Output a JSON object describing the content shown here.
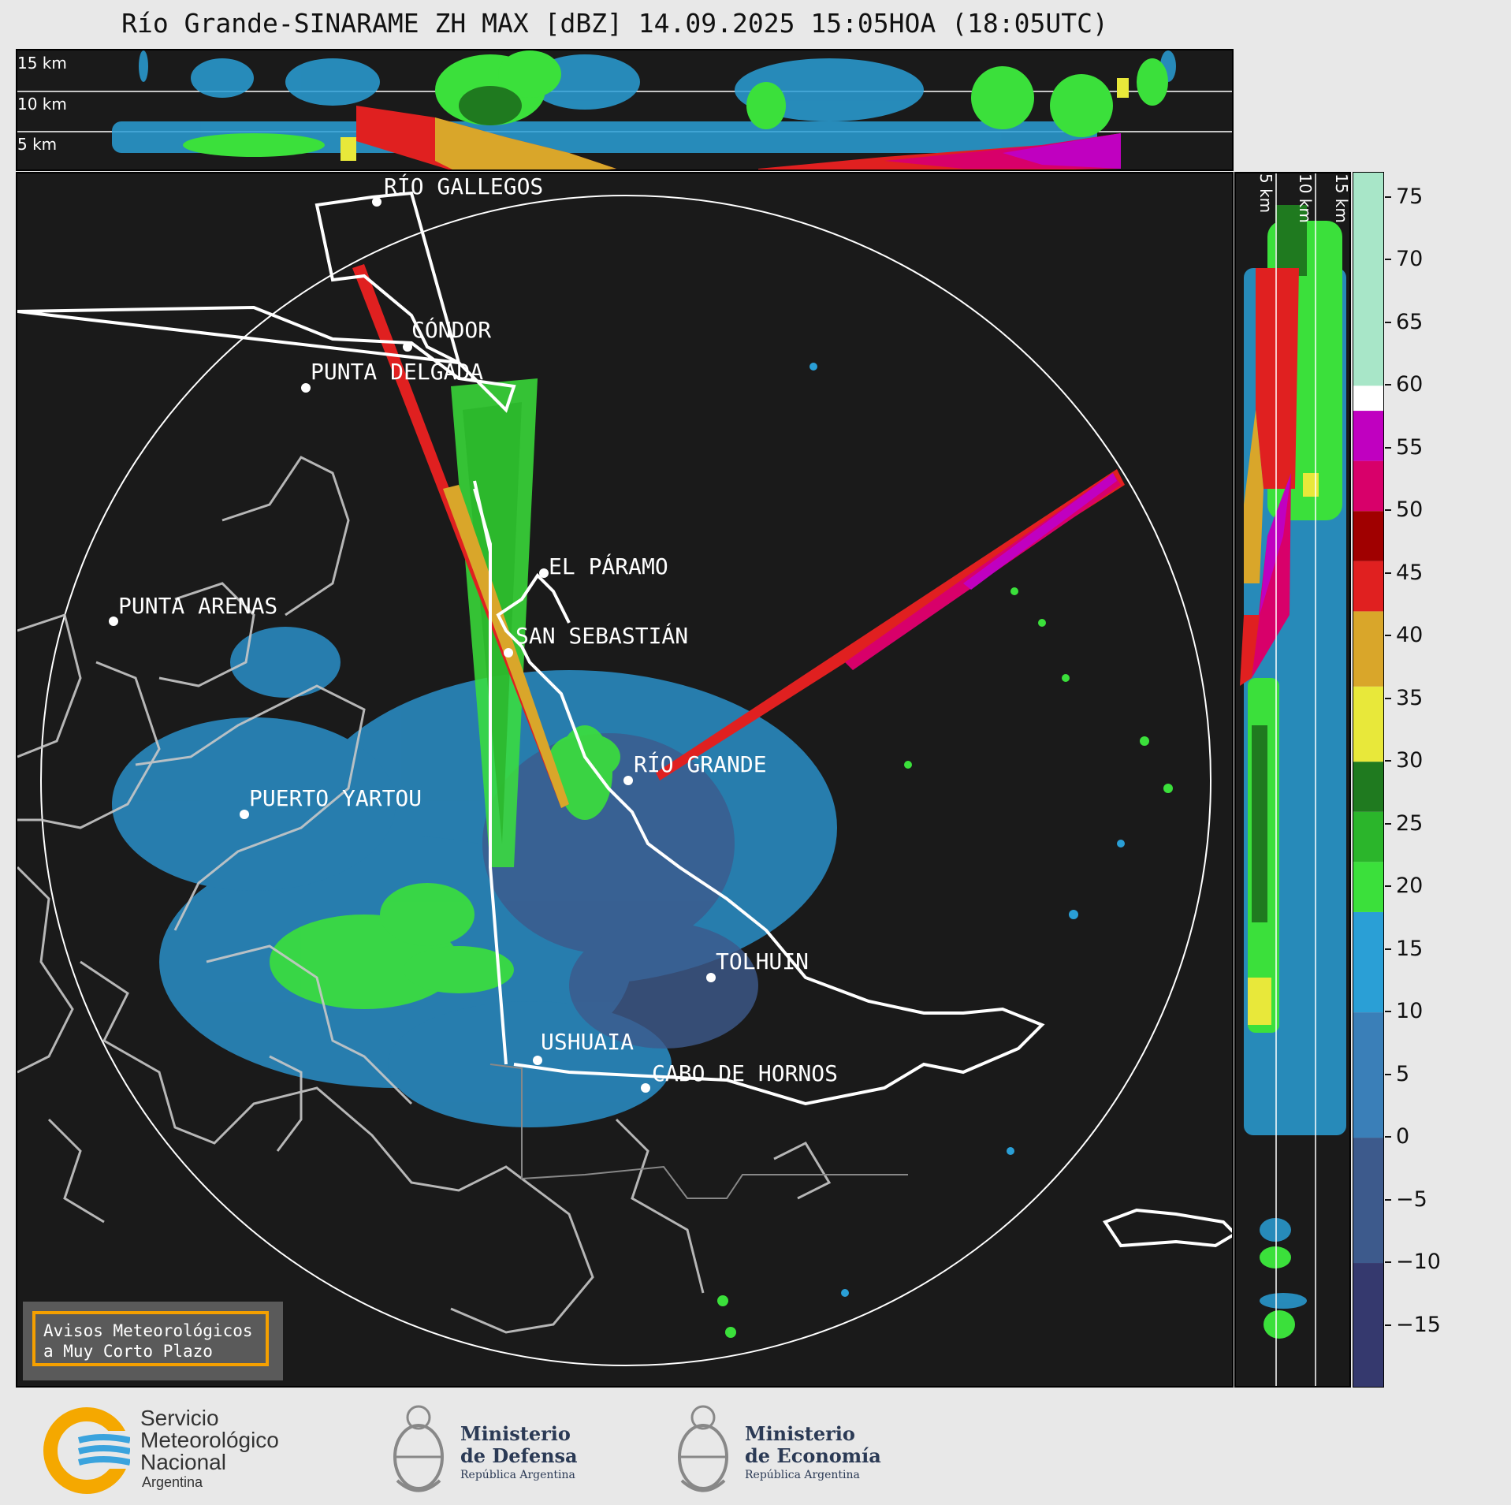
{
  "title": "Río Grande-SINARAME ZH MAX [dBZ] 14.09.2025 15:05HOA (18:05UTC)",
  "top_panel": {
    "altitude_labels": [
      "15 km",
      "10 km",
      "5 km"
    ]
  },
  "side_panel": {
    "altitude_labels": [
      "5 km",
      "10 km",
      "15 km"
    ]
  },
  "colorbar": {
    "unit": "dBZ",
    "range": [
      -20,
      77
    ],
    "ticks": [
      75,
      70,
      65,
      60,
      55,
      50,
      45,
      40,
      35,
      30,
      25,
      20,
      15,
      10,
      5,
      0,
      "−5",
      "−10",
      "−15"
    ],
    "colors": [
      {
        "from": -20,
        "to": -10,
        "color": "#35396e"
      },
      {
        "from": -10,
        "to": 0,
        "color": "#3d5a8c"
      },
      {
        "from": 0,
        "to": 10,
        "color": "#3a7fb8"
      },
      {
        "from": 10,
        "to": 18,
        "color": "#2a9fd6"
      },
      {
        "from": 18,
        "to": 22,
        "color": "#3be03b"
      },
      {
        "from": 22,
        "to": 26,
        "color": "#2bb52b"
      },
      {
        "from": 26,
        "to": 30,
        "color": "#1f7a1f"
      },
      {
        "from": 30,
        "to": 36,
        "color": "#e8e83a"
      },
      {
        "from": 36,
        "to": 42,
        "color": "#d9a62a"
      },
      {
        "from": 42,
        "to": 46,
        "color": "#e02020"
      },
      {
        "from": 46,
        "to": 50,
        "color": "#a00000"
      },
      {
        "from": 50,
        "to": 54,
        "color": "#d8006a"
      },
      {
        "from": 54,
        "to": 58,
        "color": "#c000c0"
      },
      {
        "from": 58,
        "to": 60,
        "color": "#ffffff"
      },
      {
        "from": 60,
        "to": 77,
        "color": "#a8e6c8"
      }
    ]
  },
  "cities": [
    "RÍO GALLEGOS",
    "CÓNDOR",
    "PUNTA DELGADA",
    "EL PÁRAMO",
    "PUNTA ARENAS",
    "SAN SEBASTIÁN",
    "RÍO GRANDE",
    "PUERTO YARTOU",
    "TOLHUIN",
    "USHUAIA",
    "CABO DE HORNOS"
  ],
  "warning_box": {
    "line1": "Avisos Meteorológicos",
    "line2": "a Muy Corto Plazo"
  },
  "footer": {
    "smn": {
      "line1": "Servicio",
      "line2": "Meteorológico",
      "line3": "Nacional",
      "line4": "Argentina"
    },
    "defensa": {
      "line1": "Ministerio",
      "line2": "de Defensa",
      "line3": "República Argentina"
    },
    "economia": {
      "line1": "Ministerio",
      "line2": "de Economía",
      "line3": "República Argentina"
    }
  }
}
